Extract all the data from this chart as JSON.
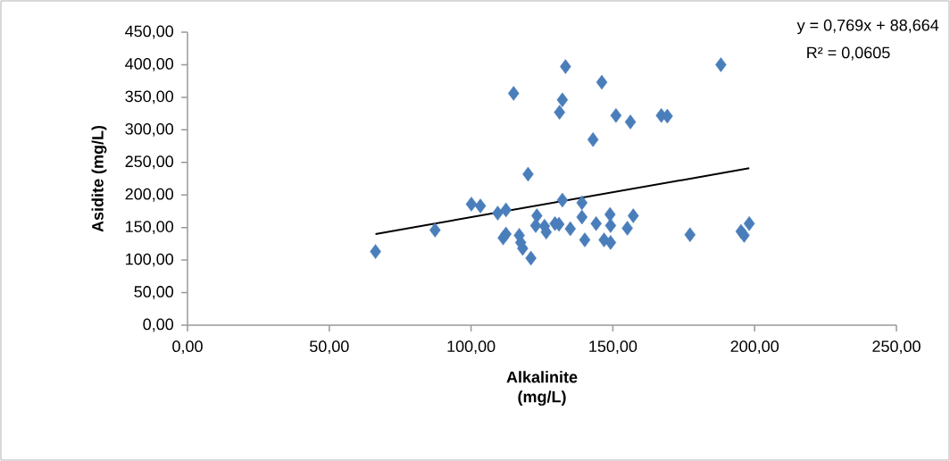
{
  "chart_data": {
    "type": "scatter",
    "xlabel": "Alkalinite (mg/L)",
    "ylabel": "Asidite (mg/L)",
    "xlim": [
      0,
      250
    ],
    "ylim": [
      0,
      450
    ],
    "xticks": [
      {
        "value": 0,
        "label": "0,00"
      },
      {
        "value": 50,
        "label": "50,00"
      },
      {
        "value": 100,
        "label": "100,00"
      },
      {
        "value": 150,
        "label": "150,00"
      },
      {
        "value": 200,
        "label": "200,00"
      },
      {
        "value": 250,
        "label": "250,00"
      }
    ],
    "yticks": [
      {
        "value": 0,
        "label": "0,00"
      },
      {
        "value": 50,
        "label": "50,00"
      },
      {
        "value": 100,
        "label": "100,00"
      },
      {
        "value": 150,
        "label": "150,00"
      },
      {
        "value": 200,
        "label": "200,00"
      },
      {
        "value": 250,
        "label": "250,00"
      },
      {
        "value": 300,
        "label": "300,00"
      },
      {
        "value": 350,
        "label": "350,00"
      },
      {
        "value": 400,
        "label": "400,00"
      },
      {
        "value": 450,
        "label": "450,00"
      }
    ],
    "marker": "diamond",
    "annotations": [
      "y = 0,769x + 88,664",
      "R² = 0,0605"
    ],
    "series": [
      {
        "color": "#4a7ebb",
        "x": [
          66.3,
          87.3,
          100.1,
          103.3,
          109.4,
          112.3,
          115.0,
          120.1,
          111.3,
          112.3,
          117.0,
          117.5,
          118.2,
          121.1,
          123.2,
          122.8,
          125.9,
          126.5,
          131.0,
          132.2,
          133.3,
          132.2,
          131.2,
          135.0,
          139.1,
          139.1,
          140.1,
          143.0,
          144.1,
          146.1,
          149.0,
          149.2,
          146.9,
          149.2,
          151.1,
          156.2,
          155.1,
          157.2,
          167.1,
          169.2,
          188.1,
          177.2,
          195.2,
          196.3,
          198.1,
          129.6
        ],
        "values": [
          113,
          146,
          186,
          183,
          172,
          177,
          356,
          232,
          134,
          140,
          138,
          127,
          118,
          103,
          168,
          153,
          152,
          143,
          155,
          192,
          397,
          346,
          327,
          148,
          188,
          166,
          131,
          285,
          156,
          373,
          170,
          153,
          131,
          127,
          322,
          312,
          149,
          168,
          322,
          321,
          400,
          139,
          144,
          138,
          156,
          156
        ]
      },
      {
        "type": "line",
        "color": "#000000",
        "marker": "none",
        "x": [
          66.3,
          198.1
        ],
        "values": [
          140,
          241
        ]
      }
    ]
  }
}
